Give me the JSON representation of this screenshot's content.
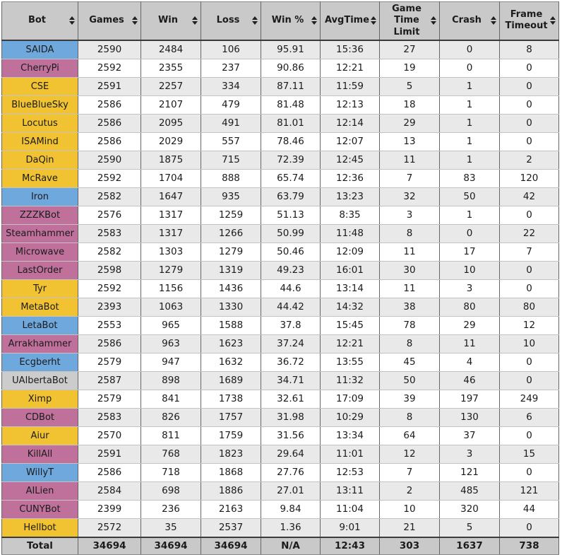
{
  "table": {
    "columns": [
      {
        "key": "bot",
        "label": "Bot"
      },
      {
        "key": "games",
        "label": "Games"
      },
      {
        "key": "win",
        "label": "Win"
      },
      {
        "key": "loss",
        "label": "Loss"
      },
      {
        "key": "win_pct",
        "label": "Win %"
      },
      {
        "key": "avg_time",
        "label": "AvgTime"
      },
      {
        "key": "game_time_limit",
        "label": "Game Time Limit"
      },
      {
        "key": "crash",
        "label": "Crash"
      },
      {
        "key": "frame_timeout",
        "label": "Frame Timeout"
      }
    ],
    "sort_icon": "up-down-arrows",
    "race_colors": {
      "blue": "#6fa8dc",
      "pink": "#c0719b",
      "yellow": "#f1c232",
      "gray": "#cccccc"
    },
    "rows": [
      {
        "bot": "SAIDA",
        "color": "blue",
        "games": "2590",
        "win": "2484",
        "loss": "106",
        "win_pct": "95.91",
        "avg_time": "15:36",
        "game_time_limit": "27",
        "crash": "0",
        "frame_timeout": "8"
      },
      {
        "bot": "CherryPi",
        "color": "pink",
        "games": "2592",
        "win": "2355",
        "loss": "237",
        "win_pct": "90.86",
        "avg_time": "12:21",
        "game_time_limit": "19",
        "crash": "0",
        "frame_timeout": "0"
      },
      {
        "bot": "CSE",
        "color": "yellow",
        "games": "2591",
        "win": "2257",
        "loss": "334",
        "win_pct": "87.11",
        "avg_time": "11:59",
        "game_time_limit": "5",
        "crash": "1",
        "frame_timeout": "0"
      },
      {
        "bot": "BlueBlueSky",
        "color": "yellow",
        "games": "2586",
        "win": "2107",
        "loss": "479",
        "win_pct": "81.48",
        "avg_time": "12:13",
        "game_time_limit": "18",
        "crash": "1",
        "frame_timeout": "0"
      },
      {
        "bot": "Locutus",
        "color": "yellow",
        "games": "2586",
        "win": "2095",
        "loss": "491",
        "win_pct": "81.01",
        "avg_time": "12:14",
        "game_time_limit": "29",
        "crash": "1",
        "frame_timeout": "0"
      },
      {
        "bot": "ISAMind",
        "color": "yellow",
        "games": "2586",
        "win": "2029",
        "loss": "557",
        "win_pct": "78.46",
        "avg_time": "12:07",
        "game_time_limit": "13",
        "crash": "1",
        "frame_timeout": "0"
      },
      {
        "bot": "DaQin",
        "color": "yellow",
        "games": "2590",
        "win": "1875",
        "loss": "715",
        "win_pct": "72.39",
        "avg_time": "12:45",
        "game_time_limit": "11",
        "crash": "1",
        "frame_timeout": "2"
      },
      {
        "bot": "McRave",
        "color": "yellow",
        "games": "2592",
        "win": "1704",
        "loss": "888",
        "win_pct": "65.74",
        "avg_time": "12:36",
        "game_time_limit": "7",
        "crash": "83",
        "frame_timeout": "120"
      },
      {
        "bot": "Iron",
        "color": "blue",
        "games": "2582",
        "win": "1647",
        "loss": "935",
        "win_pct": "63.79",
        "avg_time": "13:23",
        "game_time_limit": "32",
        "crash": "50",
        "frame_timeout": "42"
      },
      {
        "bot": "ZZZKBot",
        "color": "pink",
        "games": "2576",
        "win": "1317",
        "loss": "1259",
        "win_pct": "51.13",
        "avg_time": "8:35",
        "game_time_limit": "3",
        "crash": "1",
        "frame_timeout": "0"
      },
      {
        "bot": "Steamhammer",
        "color": "pink",
        "games": "2583",
        "win": "1317",
        "loss": "1266",
        "win_pct": "50.99",
        "avg_time": "11:48",
        "game_time_limit": "8",
        "crash": "0",
        "frame_timeout": "22"
      },
      {
        "bot": "Microwave",
        "color": "pink",
        "games": "2582",
        "win": "1303",
        "loss": "1279",
        "win_pct": "50.46",
        "avg_time": "12:09",
        "game_time_limit": "11",
        "crash": "17",
        "frame_timeout": "7"
      },
      {
        "bot": "LastOrder",
        "color": "pink",
        "games": "2598",
        "win": "1279",
        "loss": "1319",
        "win_pct": "49.23",
        "avg_time": "16:01",
        "game_time_limit": "30",
        "crash": "10",
        "frame_timeout": "0"
      },
      {
        "bot": "Tyr",
        "color": "yellow",
        "games": "2592",
        "win": "1156",
        "loss": "1436",
        "win_pct": "44.6",
        "avg_time": "13:14",
        "game_time_limit": "11",
        "crash": "3",
        "frame_timeout": "0"
      },
      {
        "bot": "MetaBot",
        "color": "yellow",
        "games": "2393",
        "win": "1063",
        "loss": "1330",
        "win_pct": "44.42",
        "avg_time": "14:32",
        "game_time_limit": "38",
        "crash": "80",
        "frame_timeout": "80"
      },
      {
        "bot": "LetaBot",
        "color": "blue",
        "games": "2553",
        "win": "965",
        "loss": "1588",
        "win_pct": "37.8",
        "avg_time": "15:45",
        "game_time_limit": "78",
        "crash": "29",
        "frame_timeout": "12"
      },
      {
        "bot": "Arrakhammer",
        "color": "pink",
        "games": "2586",
        "win": "963",
        "loss": "1623",
        "win_pct": "37.24",
        "avg_time": "12:21",
        "game_time_limit": "8",
        "crash": "11",
        "frame_timeout": "10"
      },
      {
        "bot": "Ecgberht",
        "color": "blue",
        "games": "2579",
        "win": "947",
        "loss": "1632",
        "win_pct": "36.72",
        "avg_time": "13:55",
        "game_time_limit": "45",
        "crash": "4",
        "frame_timeout": "0"
      },
      {
        "bot": "UAlbertaBot",
        "color": "gray",
        "games": "2587",
        "win": "898",
        "loss": "1689",
        "win_pct": "34.71",
        "avg_time": "11:32",
        "game_time_limit": "50",
        "crash": "46",
        "frame_timeout": "0"
      },
      {
        "bot": "Ximp",
        "color": "yellow",
        "games": "2579",
        "win": "841",
        "loss": "1738",
        "win_pct": "32.61",
        "avg_time": "17:09",
        "game_time_limit": "39",
        "crash": "197",
        "frame_timeout": "249"
      },
      {
        "bot": "CDBot",
        "color": "pink",
        "games": "2583",
        "win": "826",
        "loss": "1757",
        "win_pct": "31.98",
        "avg_time": "10:29",
        "game_time_limit": "8",
        "crash": "130",
        "frame_timeout": "6"
      },
      {
        "bot": "Aiur",
        "color": "yellow",
        "games": "2570",
        "win": "811",
        "loss": "1759",
        "win_pct": "31.56",
        "avg_time": "13:34",
        "game_time_limit": "64",
        "crash": "37",
        "frame_timeout": "0"
      },
      {
        "bot": "KillAll",
        "color": "pink",
        "games": "2591",
        "win": "768",
        "loss": "1823",
        "win_pct": "29.64",
        "avg_time": "11:01",
        "game_time_limit": "12",
        "crash": "3",
        "frame_timeout": "15"
      },
      {
        "bot": "WillyT",
        "color": "blue",
        "games": "2586",
        "win": "718",
        "loss": "1868",
        "win_pct": "27.76",
        "avg_time": "12:53",
        "game_time_limit": "7",
        "crash": "121",
        "frame_timeout": "0"
      },
      {
        "bot": "AILien",
        "color": "pink",
        "games": "2584",
        "win": "698",
        "loss": "1886",
        "win_pct": "27.01",
        "avg_time": "13:11",
        "game_time_limit": "2",
        "crash": "485",
        "frame_timeout": "121"
      },
      {
        "bot": "CUNYBot",
        "color": "pink",
        "games": "2399",
        "win": "236",
        "loss": "2163",
        "win_pct": "9.84",
        "avg_time": "11:04",
        "game_time_limit": "10",
        "crash": "320",
        "frame_timeout": "44"
      },
      {
        "bot": "Hellbot",
        "color": "yellow",
        "games": "2572",
        "win": "35",
        "loss": "2537",
        "win_pct": "1.36",
        "avg_time": "9:01",
        "game_time_limit": "21",
        "crash": "5",
        "frame_timeout": "0"
      }
    ],
    "totals": {
      "bot": "Total",
      "games": "34694",
      "win": "34694",
      "loss": "34694",
      "win_pct": "N/A",
      "avg_time": "12:43",
      "game_time_limit": "303",
      "crash": "1637",
      "frame_timeout": "738"
    }
  }
}
